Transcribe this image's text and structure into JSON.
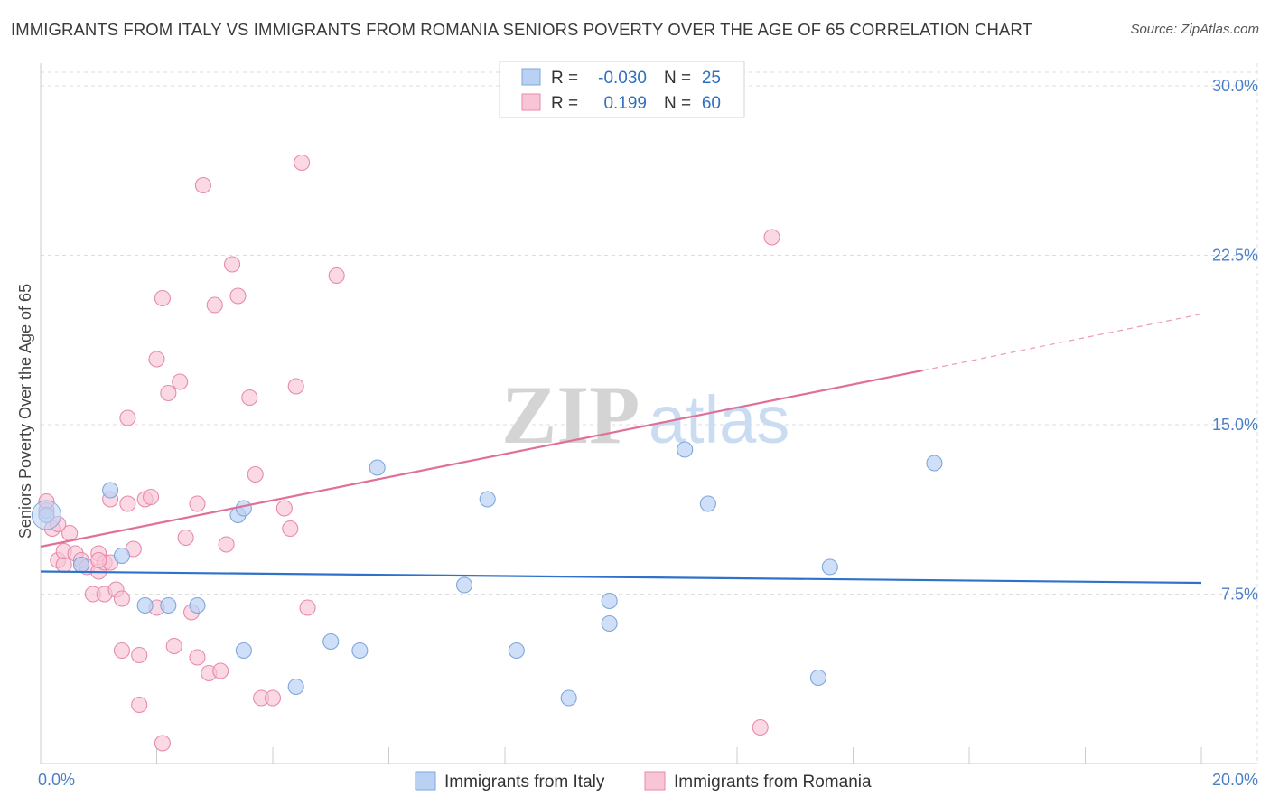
{
  "title": "IMMIGRANTS FROM ITALY VS IMMIGRANTS FROM ROMANIA SENIORS POVERTY OVER THE AGE OF 65 CORRELATION CHART",
  "source": "Source: ZipAtlas.com",
  "watermark": {
    "part1": "ZIP",
    "part2": "atlas"
  },
  "colors": {
    "italy_fill": "#b9d2f3",
    "italy_stroke": "#7fa6dc",
    "italy_line": "#2f72c9",
    "romania_fill": "#f8c5d6",
    "romania_stroke": "#e88aaa",
    "romania_line": "#e0709a",
    "tick_text": "#4a7fc8",
    "grid": "#dddddd"
  },
  "legend_top": {
    "rows": [
      {
        "r_label": "R =",
        "r_value": "-0.030",
        "n_label": "N =",
        "n_value": "25"
      },
      {
        "r_label": "R =",
        "r_value": "0.199",
        "n_label": "N =",
        "n_value": "60"
      }
    ]
  },
  "chart_data": {
    "type": "scatter",
    "title": "IMMIGRANTS FROM ITALY VS IMMIGRANTS FROM ROMANIA SENIORS POVERTY OVER THE AGE OF 65 CORRELATION CHART",
    "xlabel": "",
    "ylabel": "Seniors Poverty Over the Age of 65",
    "xlim": [
      0,
      20
    ],
    "ylim": [
      0,
      31
    ],
    "x_tick_labels": [
      "0.0%",
      "20.0%"
    ],
    "y_ticks": [
      7.5,
      15.0,
      22.5,
      30.0
    ],
    "y_tick_labels": [
      "7.5%",
      "15.0%",
      "22.5%",
      "30.0%"
    ],
    "grid": true,
    "legend_position": "top-center",
    "series": [
      {
        "name": "Immigrants from Italy",
        "R": -0.03,
        "N": 25,
        "trend": {
          "x": [
            0,
            20
          ],
          "y": [
            8.5,
            8.0
          ]
        },
        "points": [
          [
            0.1,
            11.0
          ],
          [
            1.2,
            12.1
          ],
          [
            1.8,
            7.0
          ],
          [
            2.2,
            7.0
          ],
          [
            2.7,
            7.0
          ],
          [
            3.4,
            11.0
          ],
          [
            3.5,
            5.0
          ],
          [
            3.5,
            11.3
          ],
          [
            4.4,
            3.4
          ],
          [
            5.0,
            5.4
          ],
          [
            5.5,
            5.0
          ],
          [
            5.8,
            13.1
          ],
          [
            7.3,
            7.9
          ],
          [
            7.7,
            11.7
          ],
          [
            8.2,
            5.0
          ],
          [
            9.1,
            2.9
          ],
          [
            9.8,
            6.2
          ],
          [
            9.8,
            7.2
          ],
          [
            11.1,
            13.9
          ],
          [
            11.5,
            11.5
          ],
          [
            13.4,
            3.8
          ],
          [
            13.6,
            8.7
          ],
          [
            15.4,
            13.3
          ],
          [
            1.4,
            9.2
          ],
          [
            0.7,
            8.8
          ]
        ]
      },
      {
        "name": "Immigrants from Romania",
        "R": 0.199,
        "N": 60,
        "trend": {
          "x": [
            0,
            15.2
          ],
          "y": [
            9.6,
            17.4
          ]
        },
        "trend_dashed": {
          "x": [
            15.2,
            20
          ],
          "y": [
            17.4,
            19.9
          ]
        },
        "points": [
          [
            0.1,
            11.2
          ],
          [
            0.1,
            11.6
          ],
          [
            0.2,
            10.4
          ],
          [
            0.3,
            9.0
          ],
          [
            0.4,
            8.8
          ],
          [
            0.4,
            9.4
          ],
          [
            0.5,
            10.2
          ],
          [
            0.6,
            9.3
          ],
          [
            0.7,
            8.8
          ],
          [
            0.7,
            9.0
          ],
          [
            0.8,
            8.7
          ],
          [
            0.9,
            7.5
          ],
          [
            1.0,
            9.3
          ],
          [
            1.0,
            8.5
          ],
          [
            1.1,
            8.9
          ],
          [
            1.1,
            7.5
          ],
          [
            1.2,
            11.7
          ],
          [
            1.2,
            8.9
          ],
          [
            1.3,
            7.7
          ],
          [
            1.4,
            7.3
          ],
          [
            1.4,
            5.0
          ],
          [
            1.5,
            11.5
          ],
          [
            1.5,
            15.3
          ],
          [
            1.6,
            9.5
          ],
          [
            1.7,
            4.8
          ],
          [
            1.7,
            2.6
          ],
          [
            1.8,
            11.7
          ],
          [
            1.9,
            11.8
          ],
          [
            2.0,
            17.9
          ],
          [
            2.0,
            6.9
          ],
          [
            2.1,
            20.6
          ],
          [
            2.1,
            0.9
          ],
          [
            2.2,
            16.4
          ],
          [
            2.3,
            5.2
          ],
          [
            2.4,
            16.9
          ],
          [
            2.5,
            10.0
          ],
          [
            2.6,
            6.7
          ],
          [
            2.7,
            11.5
          ],
          [
            2.7,
            4.7
          ],
          [
            2.8,
            25.6
          ],
          [
            2.9,
            4.0
          ],
          [
            3.0,
            20.3
          ],
          [
            3.1,
            4.1
          ],
          [
            3.2,
            9.7
          ],
          [
            3.3,
            22.1
          ],
          [
            3.4,
            20.7
          ],
          [
            3.6,
            16.2
          ],
          [
            3.7,
            12.8
          ],
          [
            3.8,
            2.9
          ],
          [
            4.0,
            2.9
          ],
          [
            4.2,
            11.3
          ],
          [
            4.3,
            10.4
          ],
          [
            4.4,
            16.7
          ],
          [
            4.5,
            26.6
          ],
          [
            4.6,
            6.9
          ],
          [
            5.1,
            21.6
          ],
          [
            12.6,
            23.3
          ],
          [
            12.4,
            1.6
          ],
          [
            0.3,
            10.6
          ],
          [
            1.0,
            9.0
          ]
        ]
      }
    ]
  },
  "bottom_legend": {
    "items": [
      {
        "label": "Immigrants from Italy"
      },
      {
        "label": "Immigrants from Romania"
      }
    ]
  }
}
